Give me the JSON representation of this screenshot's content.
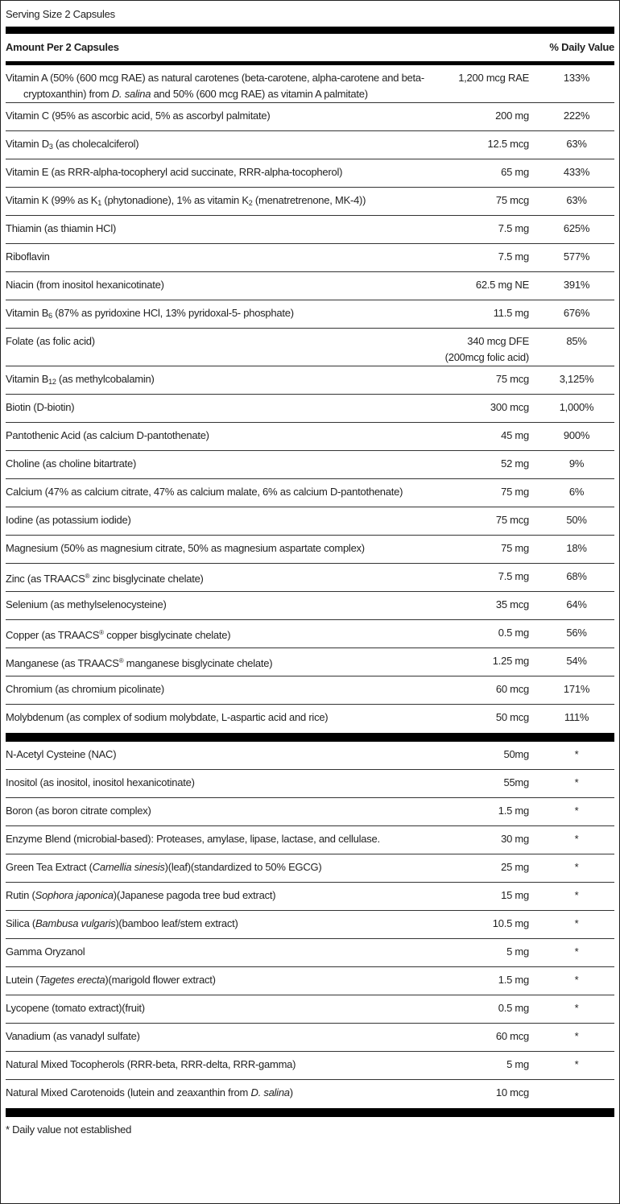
{
  "serving_size": "Serving Size 2 Capsules",
  "header": {
    "amount": "Amount Per 2 Capsules",
    "dv": "% Daily Value"
  },
  "section1": [
    {
      "name": [
        {
          "t": "Vitamin A (50% (600 mcg RAE) as natural carotenes (beta-carotene, alpha-carotene and beta-cryptoxanthin) from "
        },
        {
          "t": "D. salina",
          "s": "i"
        },
        {
          "t": " and 50% (600 mcg RAE) as vitamin A palmitate)"
        }
      ],
      "amount": "1,200 mcg RAE",
      "dv": "133%"
    },
    {
      "name": [
        {
          "t": "Vitamin C (95% as ascorbic acid, 5% as ascorbyl palmitate)"
        }
      ],
      "amount": "200 mg",
      "dv": "222%"
    },
    {
      "name": [
        {
          "t": "Vitamin D"
        },
        {
          "t": "3",
          "s": "sub"
        },
        {
          "t": " (as cholecalciferol)"
        }
      ],
      "amount": "12.5 mcg",
      "dv": "63%"
    },
    {
      "name": [
        {
          "t": "Vitamin E (as RRR-alpha-tocopheryl acid succinate, RRR-alpha-tocopherol)"
        }
      ],
      "amount": "65 mg",
      "dv": "433%"
    },
    {
      "name": [
        {
          "t": "Vitamin K (99% as K"
        },
        {
          "t": "1",
          "s": "sub"
        },
        {
          "t": " (phytonadione), 1% as vitamin K"
        },
        {
          "t": "2",
          "s": "sub"
        },
        {
          "t": " (menatretrenone, MK-4))"
        }
      ],
      "amount": "75 mcg",
      "dv": "63%"
    },
    {
      "name": [
        {
          "t": "Thiamin (as thiamin HCl)"
        }
      ],
      "amount": "7.5 mg",
      "dv": "625%"
    },
    {
      "name": [
        {
          "t": "Riboflavin"
        }
      ],
      "amount": "7.5 mg",
      "dv": "577%"
    },
    {
      "name": [
        {
          "t": "Niacin (from inositol hexanicotinate)"
        }
      ],
      "amount": "62.5 mg NE",
      "dv": "391%"
    },
    {
      "name": [
        {
          "t": "Vitamin B"
        },
        {
          "t": "6",
          "s": "sub"
        },
        {
          "t": " (87% as pyridoxine HCl, 13% pyridoxal-5- phosphate)"
        }
      ],
      "amount": "11.5 mg",
      "dv": "676%"
    },
    {
      "name": [
        {
          "t": "Folate (as folic acid)"
        }
      ],
      "amount": "340 mcg DFE",
      "amount2": "(200mcg folic acid)",
      "dv": "85%"
    },
    {
      "name": [
        {
          "t": "Vitamin B"
        },
        {
          "t": "12",
          "s": "sub"
        },
        {
          "t": " (as methylcobalamin)"
        }
      ],
      "amount": "75 mcg",
      "dv": "3,125%"
    },
    {
      "name": [
        {
          "t": "Biotin (D-biotin)"
        }
      ],
      "amount": "300 mcg",
      "dv": "1,000%"
    },
    {
      "name": [
        {
          "t": "Pantothenic Acid (as calcium D-pantothenate)"
        }
      ],
      "amount": "45 mg",
      "dv": "900%"
    },
    {
      "name": [
        {
          "t": "Choline (as choline bitartrate)"
        }
      ],
      "amount": "52 mg",
      "dv": "9%"
    },
    {
      "name": [
        {
          "t": "Calcium (47% as calcium citrate, 47% as calcium malate, 6% as calcium D-pantothenate)"
        }
      ],
      "amount": "75 mg",
      "dv": "6%"
    },
    {
      "name": [
        {
          "t": "Iodine (as potassium iodide)"
        }
      ],
      "amount": "75 mcg",
      "dv": "50%"
    },
    {
      "name": [
        {
          "t": "Magnesium (50% as magnesium citrate, 50% as magnesium aspartate complex)"
        }
      ],
      "amount": "75 mg",
      "dv": "18%"
    },
    {
      "name": [
        {
          "t": "Zinc (as TRAACS"
        },
        {
          "t": "®",
          "s": "sup"
        },
        {
          "t": " zinc bisglycinate chelate)"
        }
      ],
      "amount": "7.5 mg",
      "dv": "68%"
    },
    {
      "name": [
        {
          "t": "Selenium (as methylselenocysteine)"
        }
      ],
      "amount": "35 mcg",
      "dv": "64%"
    },
    {
      "name": [
        {
          "t": "Copper (as TRAACS"
        },
        {
          "t": "®",
          "s": "sup"
        },
        {
          "t": " copper bisglycinate chelate)"
        }
      ],
      "amount": "0.5 mg",
      "dv": "56%"
    },
    {
      "name": [
        {
          "t": "Manganese (as TRAACS"
        },
        {
          "t": "®",
          "s": "sup"
        },
        {
          "t": " manganese bisglycinate chelate)"
        }
      ],
      "amount": "1.25 mg",
      "dv": "54%"
    },
    {
      "name": [
        {
          "t": "Chromium (as chromium picolinate)"
        }
      ],
      "amount": "60 mcg",
      "dv": "171%"
    },
    {
      "name": [
        {
          "t": "Molybdenum (as complex of sodium molybdate, L-aspartic acid and rice)"
        }
      ],
      "amount": "50 mcg",
      "dv": "111%"
    }
  ],
  "section2": [
    {
      "name": [
        {
          "t": "N-Acetyl Cysteine (NAC)"
        }
      ],
      "amount": "50mg",
      "dv": "*"
    },
    {
      "name": [
        {
          "t": "Inositol (as inositol, inositol hexanicotinate)"
        }
      ],
      "amount": "55mg",
      "dv": "*"
    },
    {
      "name": [
        {
          "t": "Boron (as boron citrate complex)"
        }
      ],
      "amount": "1.5 mg",
      "dv": "*"
    },
    {
      "name": [
        {
          "t": "Enzyme Blend (microbial-based): Proteases, amylase, lipase, lactase, and cellulase."
        }
      ],
      "amount": "30 mg",
      "dv": "*"
    },
    {
      "name": [
        {
          "t": "Green Tea Extract ("
        },
        {
          "t": "Camellia sinesis",
          "s": "i"
        },
        {
          "t": ")(leaf)(standardized to 50% EGCG)"
        }
      ],
      "amount": "25 mg",
      "dv": "*"
    },
    {
      "name": [
        {
          "t": "Rutin ("
        },
        {
          "t": "Sophora japonica",
          "s": "i"
        },
        {
          "t": ")(Japanese pagoda tree bud extract)"
        }
      ],
      "amount": "15 mg",
      "dv": "*"
    },
    {
      "name": [
        {
          "t": "Silica ("
        },
        {
          "t": "Bambusa vulgaris",
          "s": "i"
        },
        {
          "t": ")(bamboo leaf/stem extract)"
        }
      ],
      "amount": "10.5 mg",
      "dv": "*"
    },
    {
      "name": [
        {
          "t": "Gamma Oryzanol"
        }
      ],
      "amount": "5 mg",
      "dv": "*"
    },
    {
      "name": [
        {
          "t": "Lutein ("
        },
        {
          "t": "Tagetes erecta",
          "s": "i"
        },
        {
          "t": ")(marigold flower extract)"
        }
      ],
      "amount": "1.5 mg",
      "dv": "*"
    },
    {
      "name": [
        {
          "t": "Lycopene (tomato extract)(fruit)"
        }
      ],
      "amount": "0.5 mg",
      "dv": "*"
    },
    {
      "name": [
        {
          "t": "Vanadium (as vanadyl sulfate)"
        }
      ],
      "amount": "60 mcg",
      "dv": "*"
    },
    {
      "name": [
        {
          "t": "Natural Mixed Tocopherols (RRR-beta, RRR-delta, RRR-gamma)"
        }
      ],
      "amount": "5 mg",
      "dv": "*"
    },
    {
      "name": [
        {
          "t": "Natural Mixed Carotenoids (lutein and zeaxanthin from "
        },
        {
          "t": "D. salina",
          "s": "i"
        },
        {
          "t": ")"
        }
      ],
      "amount": "10 mcg",
      "dv": ""
    }
  ],
  "footnote": "* Daily value not established"
}
